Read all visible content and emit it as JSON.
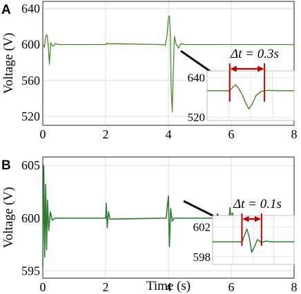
{
  "chart_data": [
    {
      "type": "line",
      "panel_label": "A",
      "ylabel": "Voltage  (V)",
      "xlim": [
        0,
        8
      ],
      "ylim": [
        510,
        648
      ],
      "x_ticks": [
        0,
        2,
        4,
        6,
        8
      ],
      "y_ticks": [
        520,
        560,
        600,
        640
      ],
      "grid": true,
      "series": [
        {
          "color": "#4a8a2a",
          "x": [
            0.0,
            0.05,
            0.09,
            0.13,
            0.17,
            0.21,
            0.25,
            0.28,
            0.33,
            0.4,
            0.5,
            2.0,
            2.01,
            3.8,
            3.9,
            3.96,
            4.0,
            4.03,
            4.06,
            4.09,
            4.12,
            4.15,
            4.19,
            4.24,
            4.32,
            4.4,
            4.5,
            8.0
          ],
          "values": [
            600,
            597,
            609,
            611,
            601,
            578,
            602,
            600,
            598,
            601,
            600,
            600,
            601,
            600,
            599,
            612,
            630,
            632,
            612,
            548,
            525,
            563,
            609,
            601,
            596,
            601,
            600,
            600
          ]
        }
      ],
      "inset": {
        "ylim": [
          510,
          660
        ],
        "y_ticks": [
          520,
          640
        ],
        "annotation": "Δt = 0.3s",
        "x": [
          0.0,
          0.26,
          0.3,
          0.33,
          0.36,
          0.4,
          0.44,
          0.48,
          0.52,
          0.56,
          0.62,
          0.7,
          0.8,
          1.0
        ],
        "values": [
          600,
          600,
          612,
          618,
          608,
          590,
          565,
          545,
          560,
          585,
          598,
          601,
          600,
          600
        ],
        "marker_left": 0.26,
        "marker_right": 0.66
      }
    },
    {
      "type": "line",
      "panel_label": "B",
      "ylabel": "Voltage  (V)",
      "xlabel": "Time  (s)",
      "xlim": [
        0,
        8
      ],
      "ylim": [
        594.3,
        605.8
      ],
      "x_ticks": [
        0,
        2,
        4,
        6,
        8
      ],
      "y_ticks": [
        595,
        600,
        605
      ],
      "grid": true,
      "series": [
        {
          "color": "#2e7d32",
          "x": [
            0.0,
            0.03,
            0.06,
            0.09,
            0.12,
            0.15,
            0.19,
            0.24,
            0.3,
            0.4,
            2.0,
            2.02,
            2.05,
            2.09,
            2.14,
            3.93,
            3.97,
            4.0,
            4.03,
            4.07,
            4.12,
            4.18,
            5.93,
            5.96,
            5.99,
            6.03,
            6.08,
            8.0
          ],
          "values": [
            595.4,
            605.0,
            596.3,
            603.2,
            597.0,
            601.7,
            598.8,
            600.6,
            599.8,
            600.0,
            600.0,
            601.4,
            599.1,
            600.6,
            599.9,
            600.0,
            601.3,
            602.1,
            597.3,
            600.9,
            599.7,
            600.0,
            600.0,
            601.0,
            599.2,
            600.5,
            600.0,
            600.0
          ]
        }
      ],
      "inset": {
        "ylim": [
          597.0,
          603.5
        ],
        "y_ticks": [
          598,
          602
        ],
        "annotation": "Δt = 0.1s",
        "x": [
          0.0,
          0.36,
          0.39,
          0.42,
          0.45,
          0.48,
          0.51,
          0.55,
          0.6,
          0.66,
          0.72,
          1.0
        ],
        "values": [
          600.0,
          600.0,
          600.8,
          601.7,
          600.6,
          598.6,
          599.3,
          600.3,
          599.9,
          600.1,
          600.0,
          600.0
        ],
        "marker_left": 0.36,
        "marker_right": 0.6
      }
    }
  ]
}
